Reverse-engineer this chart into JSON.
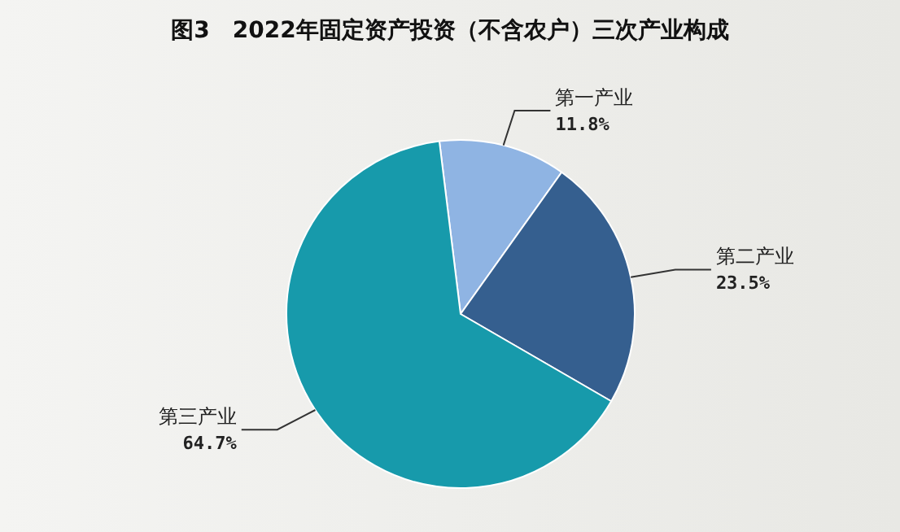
{
  "chart_data": {
    "type": "pie",
    "title": "图3　2022年固定资产投资（不含农户）三次产业构成",
    "categories": [
      "第一产业",
      "第二产业",
      "第三产业"
    ],
    "values": [
      11.8,
      23.5,
      64.7
    ],
    "value_labels": [
      "11.8%",
      "23.5%",
      "64.7%"
    ],
    "colors": [
      "#8fb4e3",
      "#355f8f",
      "#179aab"
    ],
    "legend": false
  }
}
